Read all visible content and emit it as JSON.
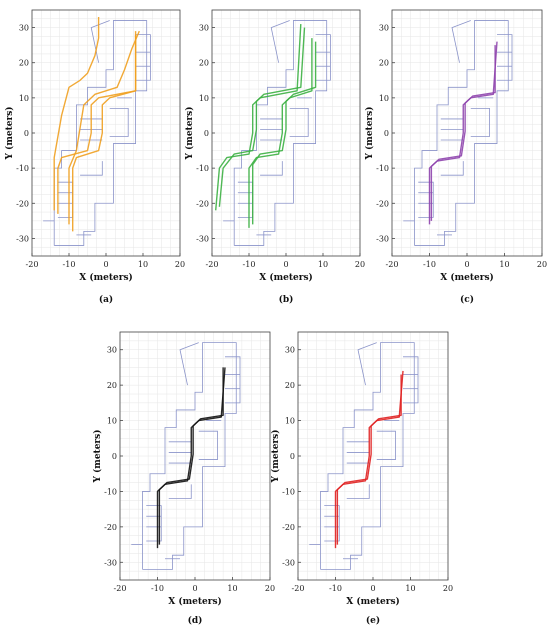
{
  "figure": {
    "axis_color": "#444444",
    "grid_color": "#e6e6e6",
    "floorplan_color": "#8a93c9"
  },
  "chart_data": [
    {
      "panel": "(a)",
      "type": "line",
      "xlabel": "X (meters)",
      "ylabel": "Y (meters)",
      "xlim": [
        -20,
        20
      ],
      "ylim": [
        -35,
        35
      ],
      "xticks": [
        -20,
        -10,
        0,
        10,
        20
      ],
      "yticks": [
        -30,
        -20,
        -10,
        0,
        10,
        20,
        30
      ],
      "grid": true,
      "series": [
        {
          "color": "#f0a020",
          "x": [
            -13,
            -13,
            -12,
            -5,
            -4,
            -4,
            -2,
            8,
            8
          ],
          "y": [
            -23,
            -10,
            -7,
            -5,
            0,
            8,
            10,
            12,
            28
          ]
        },
        {
          "color": "#f0a020",
          "x": [
            -9,
            -9,
            -8,
            -2,
            -1,
            -1,
            1,
            8,
            8
          ],
          "y": [
            -28,
            -10,
            -7,
            -5,
            0,
            8,
            10,
            12,
            29
          ]
        },
        {
          "color": "#f0a020",
          "x": [
            -14,
            -14,
            -12,
            -10,
            -7,
            -5,
            -3,
            -2,
            -2
          ],
          "y": [
            -22,
            -7,
            5,
            13,
            15,
            17,
            22,
            27,
            33
          ]
        },
        {
          "color": "#f0a020",
          "x": [
            -10,
            -10,
            -8,
            -6,
            -3,
            0,
            3,
            5,
            7,
            9
          ],
          "y": [
            -26,
            -10,
            -5,
            8,
            11,
            12,
            13,
            18,
            24,
            29
          ]
        }
      ]
    },
    {
      "panel": "(b)",
      "type": "line",
      "xlabel": "X (meters)",
      "ylabel": "Y (meters)",
      "xlim": [
        -20,
        20
      ],
      "ylim": [
        -35,
        35
      ],
      "xticks": [
        -20,
        -10,
        0,
        10,
        20
      ],
      "yticks": [
        -30,
        -20,
        -10,
        0,
        10,
        20,
        30
      ],
      "grid": true,
      "series": [
        {
          "color": "#3cb043",
          "x": [
            -19,
            -18,
            -16,
            -10,
            -9,
            -9,
            -7,
            3,
            4
          ],
          "y": [
            -22,
            -10,
            -7,
            -6,
            0,
            8,
            10,
            12,
            31
          ]
        },
        {
          "color": "#3cb043",
          "x": [
            -10,
            -10,
            -8,
            -2,
            -1,
            -1,
            1,
            7,
            7
          ],
          "y": [
            -27,
            -10,
            -7,
            -6,
            0,
            8,
            10,
            12,
            27
          ]
        },
        {
          "color": "#3cb043",
          "x": [
            -18,
            -17,
            -14,
            -9,
            -8,
            -8,
            -6,
            4,
            5
          ],
          "y": [
            -21,
            -10,
            -6,
            -5,
            1,
            9,
            11,
            13,
            30
          ]
        },
        {
          "color": "#3cb043",
          "x": [
            -9,
            -9,
            -7,
            -1,
            0,
            0,
            2,
            8,
            8
          ],
          "y": [
            -26,
            -9,
            -6,
            -5,
            1,
            9,
            11,
            13,
            26
          ]
        }
      ]
    },
    {
      "panel": "(c)",
      "type": "line",
      "xlabel": "X (meters)",
      "ylabel": "Y (meters)",
      "xlim": [
        -20,
        20
      ],
      "ylim": [
        -35,
        35
      ],
      "xticks": [
        -20,
        -10,
        0,
        10,
        20
      ],
      "yticks": [
        -30,
        -20,
        -10,
        0,
        10,
        20,
        30
      ],
      "grid": true,
      "series": [
        {
          "color": "#8e44ad",
          "x": [
            -10,
            -10,
            -8,
            -2,
            -1,
            -1,
            1,
            7,
            8
          ],
          "y": [
            -26,
            -10,
            -8,
            -7,
            0,
            8,
            10,
            11,
            26
          ]
        },
        {
          "color": "#8e44ad",
          "x": [
            -9.5,
            -9.5,
            -7.5,
            -1.5,
            -0.5,
            -0.5,
            1.5,
            7.5,
            7.5
          ],
          "y": [
            -25,
            -9.5,
            -7.5,
            -6.5,
            0.5,
            8.5,
            10.5,
            11.5,
            25
          ]
        }
      ]
    },
    {
      "panel": "(d)",
      "type": "line",
      "xlabel": "X (meters)",
      "ylabel": "Y (meters)",
      "xlim": [
        -20,
        20
      ],
      "ylim": [
        -35,
        35
      ],
      "xticks": [
        -20,
        -10,
        0,
        10,
        20
      ],
      "yticks": [
        -30,
        -20,
        -10,
        0,
        10,
        20,
        30
      ],
      "grid": true,
      "series": [
        {
          "color": "#111111",
          "x": [
            -10,
            -10,
            -8,
            -2,
            -1,
            -1,
            1,
            7,
            8
          ],
          "y": [
            -26,
            -10,
            -8,
            -7,
            0,
            8,
            10,
            11,
            25
          ]
        },
        {
          "color": "#111111",
          "x": [
            -9.5,
            -9.5,
            -7.5,
            -1.5,
            -0.5,
            -0.5,
            1.5,
            7.5,
            7.5
          ],
          "y": [
            -25,
            -9.5,
            -7.5,
            -6.5,
            0.5,
            8.5,
            10.5,
            11.5,
            25
          ]
        }
      ]
    },
    {
      "panel": "(e)",
      "type": "line",
      "xlabel": "X (meters)",
      "ylabel": "Y (meters)",
      "xlim": [
        -20,
        20
      ],
      "ylim": [
        -35,
        35
      ],
      "xticks": [
        -20,
        -10,
        0,
        10,
        20
      ],
      "yticks": [
        -30,
        -20,
        -10,
        0,
        10,
        20,
        30
      ],
      "grid": true,
      "series": [
        {
          "color": "#e02020",
          "x": [
            -10,
            -10,
            -8,
            -2,
            -1,
            -1,
            1,
            7,
            8
          ],
          "y": [
            -26,
            -10,
            -8,
            -7,
            0,
            8,
            10,
            11,
            24
          ]
        },
        {
          "color": "#e02020",
          "x": [
            -9.5,
            -9.5,
            -7.5,
            -1.5,
            -0.5,
            -0.5,
            1.5,
            7.5,
            7.5
          ],
          "y": [
            -25,
            -9.5,
            -7.5,
            -6.5,
            0.5,
            8.5,
            10.5,
            11.5,
            23
          ]
        }
      ]
    }
  ]
}
